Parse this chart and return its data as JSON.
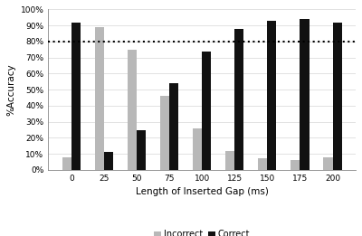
{
  "categories": [
    0,
    25,
    50,
    75,
    100,
    125,
    150,
    175,
    200
  ],
  "incorrect": [
    0.08,
    0.89,
    0.75,
    0.46,
    0.26,
    0.12,
    0.07,
    0.06,
    0.08
  ],
  "correct": [
    0.92,
    0.11,
    0.25,
    0.54,
    0.74,
    0.88,
    0.93,
    0.94,
    0.92
  ],
  "incorrect_color": "#b8b8b8",
  "correct_color": "#111111",
  "xlabel": "Length of Inserted Gap (ms)",
  "ylabel": "%Accuracy",
  "ylim": [
    0,
    1.0
  ],
  "yticks": [
    0.0,
    0.1,
    0.2,
    0.3,
    0.4,
    0.5,
    0.6,
    0.7,
    0.8,
    0.9,
    1.0
  ],
  "ytick_labels": [
    "0%",
    "10%",
    "20%",
    "30%",
    "40%",
    "50%",
    "60%",
    "70%",
    "80%",
    "90%",
    "100%"
  ],
  "hline_y": 0.8,
  "legend_labels": [
    "Incorrect",
    "Correct"
  ],
  "bar_width": 0.28,
  "background_color": "#ffffff",
  "grid_color": "#dddddd",
  "xlabel_fontsize": 7.5,
  "ylabel_fontsize": 7.5,
  "tick_fontsize": 6.5,
  "legend_fontsize": 7
}
